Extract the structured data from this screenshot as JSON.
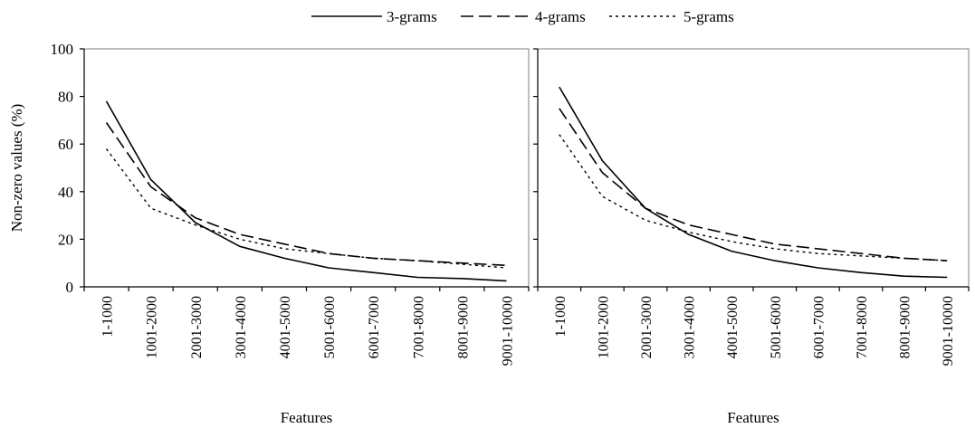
{
  "legend": {
    "position": "top-center",
    "entries": [
      {
        "label": "3-grams",
        "dash": "solid"
      },
      {
        "label": "4-grams",
        "dash": "dashed"
      },
      {
        "label": "5-grams",
        "dash": "dotted"
      }
    ]
  },
  "chart_data": [
    {
      "type": "line",
      "title": "",
      "xlabel": "Features",
      "ylabel": "Non-zero values (%)",
      "ylim": [
        0,
        100
      ],
      "yticks": [
        0,
        20,
        40,
        60,
        80,
        100
      ],
      "grid": false,
      "categories": [
        "1-1000",
        "1001-2000",
        "2001-3000",
        "3001-4000",
        "4001-5000",
        "5001-6000",
        "6001-7000",
        "7001-8000",
        "8001-9000",
        "9001-10000"
      ],
      "series": [
        {
          "name": "3-grams",
          "values": [
            78,
            45,
            27,
            17,
            12,
            8,
            6,
            4,
            3.5,
            2.5
          ]
        },
        {
          "name": "4-grams",
          "values": [
            69,
            42,
            29,
            22,
            18,
            14,
            12,
            11,
            10,
            9
          ]
        },
        {
          "name": "5-grams",
          "values": [
            58,
            33,
            26,
            20,
            16,
            14,
            12,
            11,
            9.5,
            8
          ]
        }
      ]
    },
    {
      "type": "line",
      "title": "",
      "xlabel": "Features",
      "ylabel": "",
      "ylim": [
        0,
        100
      ],
      "yticks": [
        0,
        20,
        40,
        60,
        80,
        100
      ],
      "grid": false,
      "categories": [
        "1-1000",
        "1001-2000",
        "2001-3000",
        "3001-4000",
        "4001-5000",
        "5001-6000",
        "6001-7000",
        "7001-8000",
        "8001-9000",
        "9001-10000"
      ],
      "series": [
        {
          "name": "3-grams",
          "values": [
            84,
            53,
            33,
            22,
            15,
            11,
            8,
            6,
            4.5,
            4
          ]
        },
        {
          "name": "4-grams",
          "values": [
            75,
            48,
            33,
            26,
            22,
            18,
            16,
            14,
            12,
            11
          ]
        },
        {
          "name": "5-grams",
          "values": [
            64,
            38,
            28,
            23,
            19,
            16,
            14,
            13,
            12,
            11
          ]
        }
      ]
    }
  ]
}
